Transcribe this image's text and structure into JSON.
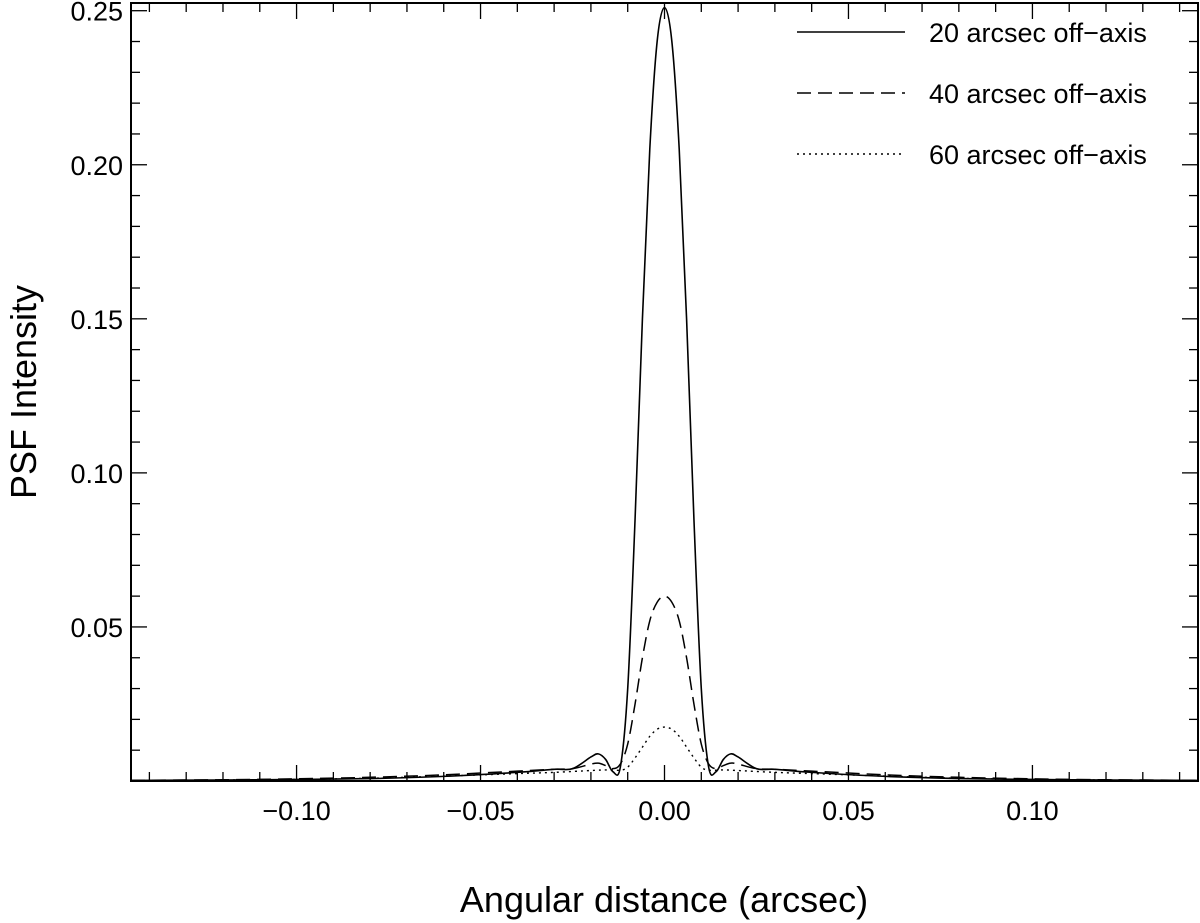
{
  "chart_data": {
    "type": "line",
    "xlabel": "Angular distance (arcsec)",
    "ylabel": "PSF Intensity",
    "xlim": [
      -0.145,
      0.145
    ],
    "ylim": [
      0.0,
      0.2525
    ],
    "xticks": [
      -0.1,
      -0.05,
      0.0,
      0.05,
      0.1
    ],
    "xtick_labels": [
      "−0.10",
      "−0.05",
      "0.00",
      "0.05",
      "0.10"
    ],
    "yticks": [
      0.05,
      0.1,
      0.15,
      0.2,
      0.25
    ],
    "ytick_labels": [
      "0.05",
      "0.10",
      "0.15",
      "0.20",
      "0.25"
    ],
    "grid": false,
    "legend_position": "top-right",
    "line_color": "#000000",
    "series": [
      {
        "name": "20 arcsec off−axis",
        "style": "solid",
        "x": [
          -0.145,
          -0.12,
          -0.1,
          -0.08,
          -0.06,
          -0.04,
          -0.03,
          -0.025,
          -0.02,
          -0.018,
          -0.016,
          -0.014,
          -0.012,
          -0.01,
          -0.008,
          -0.006,
          -0.004,
          -0.002,
          0.0,
          0.002,
          0.004,
          0.006,
          0.008,
          0.01,
          0.012,
          0.014,
          0.016,
          0.018,
          0.02,
          0.025,
          0.03,
          0.04,
          0.06,
          0.08,
          0.1,
          0.12,
          0.145
        ],
        "y": [
          0.0002,
          0.0003,
          0.0005,
          0.0008,
          0.0015,
          0.0028,
          0.0038,
          0.004,
          0.0078,
          0.0088,
          0.007,
          0.003,
          0.0045,
          0.03,
          0.085,
          0.15,
          0.205,
          0.24,
          0.251,
          0.24,
          0.205,
          0.15,
          0.085,
          0.03,
          0.0045,
          0.003,
          0.007,
          0.0088,
          0.0078,
          0.004,
          0.0038,
          0.0028,
          0.0015,
          0.0008,
          0.0005,
          0.0003,
          0.0002
        ]
      },
      {
        "name": "40 arcsec off−axis",
        "style": "dashed",
        "x": [
          -0.145,
          -0.12,
          -0.1,
          -0.08,
          -0.06,
          -0.04,
          -0.03,
          -0.025,
          -0.02,
          -0.018,
          -0.016,
          -0.014,
          -0.012,
          -0.01,
          -0.008,
          -0.006,
          -0.004,
          -0.002,
          0.0,
          0.002,
          0.004,
          0.006,
          0.008,
          0.01,
          0.012,
          0.014,
          0.016,
          0.018,
          0.02,
          0.025,
          0.03,
          0.04,
          0.06,
          0.08,
          0.1,
          0.12,
          0.145
        ],
        "y": [
          0.0002,
          0.0004,
          0.0007,
          0.0012,
          0.002,
          0.0032,
          0.0038,
          0.004,
          0.0055,
          0.0058,
          0.005,
          0.004,
          0.0055,
          0.012,
          0.025,
          0.04,
          0.052,
          0.058,
          0.06,
          0.058,
          0.052,
          0.04,
          0.025,
          0.012,
          0.0055,
          0.004,
          0.005,
          0.0058,
          0.0055,
          0.004,
          0.0038,
          0.0032,
          0.002,
          0.0012,
          0.0007,
          0.0004,
          0.0002
        ]
      },
      {
        "name": "60 arcsec off−axis",
        "style": "dotted",
        "x": [
          -0.145,
          -0.12,
          -0.1,
          -0.08,
          -0.06,
          -0.04,
          -0.03,
          -0.02,
          -0.016,
          -0.012,
          -0.01,
          -0.008,
          -0.006,
          -0.004,
          -0.002,
          0.0,
          0.002,
          0.004,
          0.006,
          0.008,
          0.01,
          0.012,
          0.016,
          0.02,
          0.03,
          0.04,
          0.06,
          0.08,
          0.1,
          0.12,
          0.145
        ],
        "y": [
          0.0001,
          0.0003,
          0.0005,
          0.0009,
          0.0016,
          0.0024,
          0.0028,
          0.0034,
          0.0036,
          0.0035,
          0.0045,
          0.0075,
          0.011,
          0.0145,
          0.0168,
          0.0175,
          0.0168,
          0.0145,
          0.011,
          0.0075,
          0.0045,
          0.0035,
          0.0036,
          0.0034,
          0.0028,
          0.0024,
          0.0016,
          0.0009,
          0.0005,
          0.0003,
          0.0001
        ]
      }
    ]
  }
}
